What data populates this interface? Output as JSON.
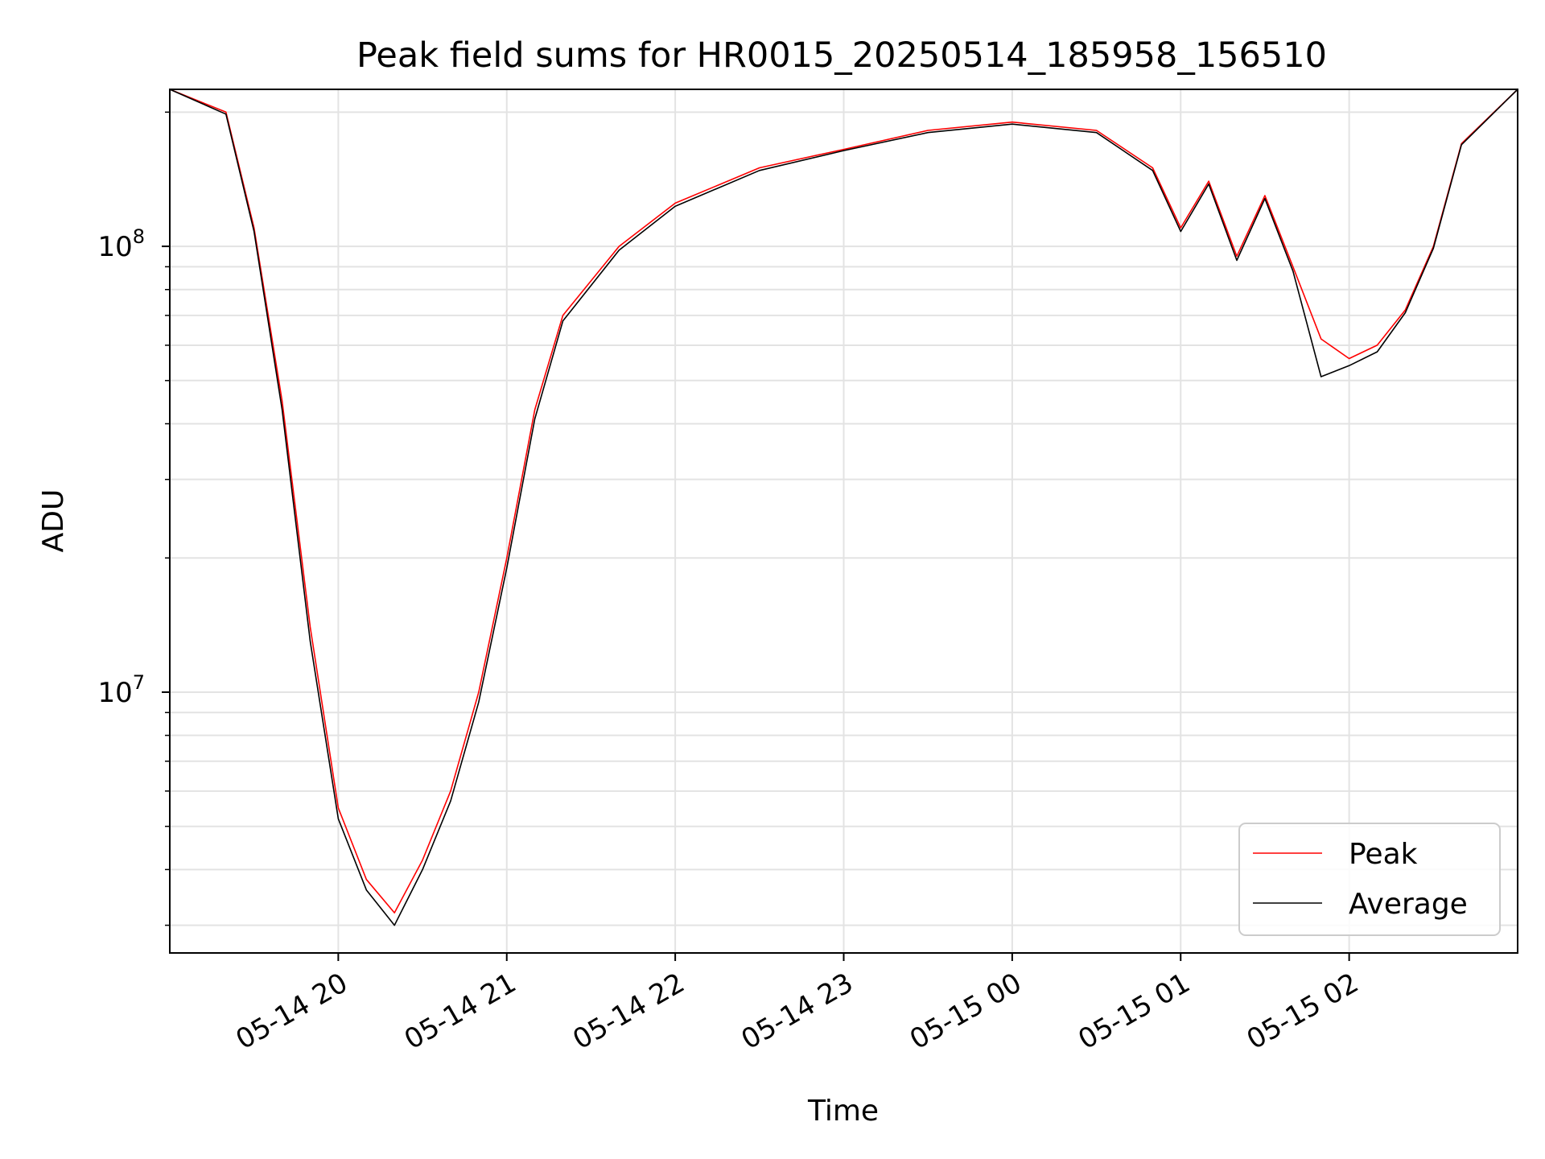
{
  "chart_data": {
    "type": "line",
    "title": "Peak field sums for HR0015_20250514_185958_156510",
    "xlabel": "Time",
    "ylabel": "ADU",
    "y_scale": "log",
    "ylim": [
      2600000,
      225000000
    ],
    "xlim": [
      "05-14 19:00",
      "05-15 03:00"
    ],
    "x_tick_labels": [
      "05-14 20",
      "05-14 21",
      "05-14 22",
      "05-14 23",
      "05-15 00",
      "05-15 01",
      "05-15 02"
    ],
    "x_tick_values": [
      "05-14 20:00",
      "05-14 21:00",
      "05-14 22:00",
      "05-14 23:00",
      "05-15 00:00",
      "05-15 01:00",
      "05-15 02:00"
    ],
    "y_tick_labels": [
      {
        "base": "10",
        "exp": "7",
        "value": 10000000
      },
      {
        "base": "10",
        "exp": "8",
        "value": 100000000
      }
    ],
    "grid": true,
    "legend_position": "lower-right",
    "x": [
      "05-14 19:00",
      "05-14 19:20",
      "05-14 19:30",
      "05-14 19:40",
      "05-14 19:50",
      "05-14 20:00",
      "05-14 20:10",
      "05-14 20:20",
      "05-14 20:30",
      "05-14 20:40",
      "05-14 20:50",
      "05-14 21:00",
      "05-14 21:10",
      "05-14 21:20",
      "05-14 21:40",
      "05-14 22:00",
      "05-14 22:30",
      "05-14 23:00",
      "05-14 23:30",
      "05-15 00:00",
      "05-15 00:30",
      "05-15 00:50",
      "05-15 01:00",
      "05-15 01:10",
      "05-15 01:20",
      "05-15 01:30",
      "05-15 01:40",
      "05-15 01:50",
      "05-15 02:00",
      "05-15 02:10",
      "05-15 02:20",
      "05-15 02:30",
      "05-15 02:40",
      "05-15 03:00"
    ],
    "series": [
      {
        "name": "Peak",
        "color": "#ff0000",
        "values": [
          225000000,
          200000000,
          110000000,
          45000000,
          14000000,
          5500000,
          3800000,
          3200000,
          4200000,
          6000000,
          10000000,
          20000000,
          43000000,
          70000000,
          100000000,
          125000000,
          150000000,
          165000000,
          182000000,
          190000000,
          182000000,
          150000000,
          110000000,
          140000000,
          95000000,
          130000000,
          90000000,
          62000000,
          56000000,
          60000000,
          72000000,
          100000000,
          170000000,
          225000000
        ]
      },
      {
        "name": "Average",
        "color": "#000000",
        "values": [
          225000000,
          198000000,
          108000000,
          43000000,
          13000000,
          5200000,
          3600000,
          3000000,
          4000000,
          5700000,
          9500000,
          19000000,
          41000000,
          68000000,
          98000000,
          123000000,
          148000000,
          164000000,
          180000000,
          188000000,
          180000000,
          148000000,
          108000000,
          138000000,
          93000000,
          128000000,
          88000000,
          51000000,
          54000000,
          58000000,
          71000000,
          99000000,
          169000000,
          225000000
        ]
      }
    ]
  }
}
